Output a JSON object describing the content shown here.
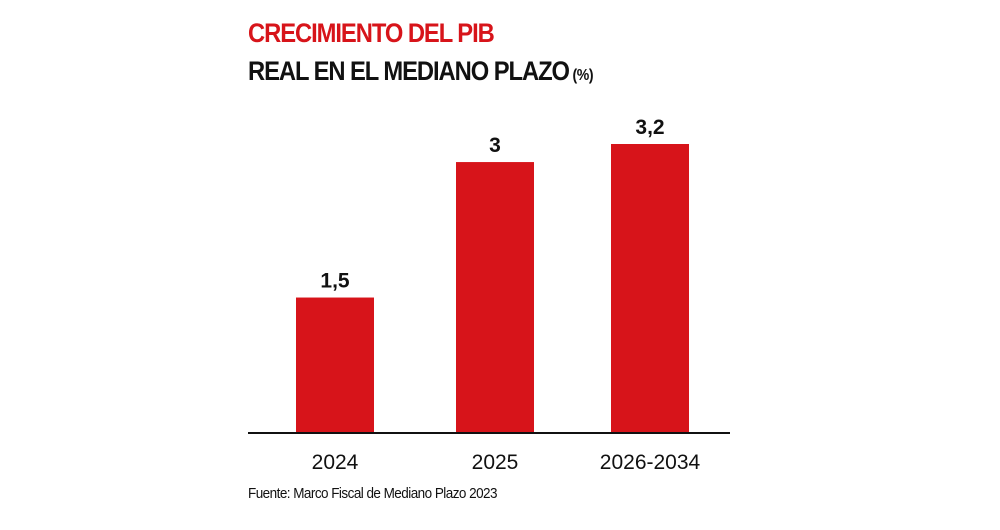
{
  "chart_data": {
    "type": "bar",
    "title": "CRECIMIENTO DEL PIB",
    "subtitle": "REAL EN EL MEDIANO PLAZO",
    "unit": "(%)",
    "categories": [
      "2024",
      "2025",
      "2026-2034"
    ],
    "values": [
      1.5,
      3,
      3.2
    ],
    "data_labels": [
      "1,5",
      "3",
      "3,2"
    ],
    "xlabel": "",
    "ylabel": "",
    "ylim": [
      0,
      3.2
    ],
    "grid": false,
    "bar_color": "#d7141a",
    "source": "Fuente: Marco Fiscal de Mediano Plazo 2023"
  }
}
